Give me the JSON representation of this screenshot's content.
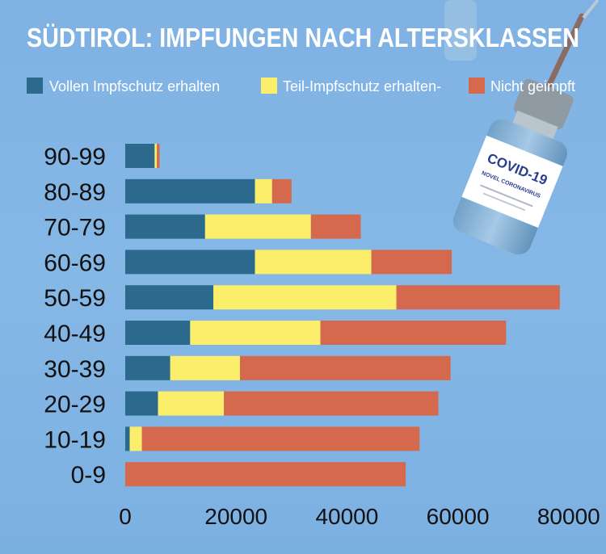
{
  "chart_data": {
    "type": "bar",
    "orientation": "horizontal",
    "stacked": true,
    "title": "SÜDTIROL: IMPFUNGEN NACH ALTERSKLASSEN",
    "categories": [
      "90-99",
      "80-89",
      "70-79",
      "60-69",
      "50-59",
      "40-49",
      "30-39",
      "20-29",
      "10-19",
      "0-9"
    ],
    "series": [
      {
        "name": "Vollen Impfschutz erhalten",
        "color": "#2b6a8c",
        "values": [
          5300,
          23400,
          14400,
          23400,
          15900,
          11700,
          8100,
          5900,
          800,
          0
        ]
      },
      {
        "name": "Teil-Impfschutz erhalten-",
        "color": "#fbee6a",
        "values": [
          400,
          3100,
          19100,
          21000,
          33000,
          23500,
          12600,
          11900,
          2200,
          0
        ]
      },
      {
        "name": "Nicht geimpft",
        "color": "#d5694e",
        "values": [
          500,
          3500,
          9000,
          14500,
          29500,
          33500,
          38000,
          38700,
          50100,
          50600
        ]
      }
    ],
    "x_ticks": [
      "0",
      "20000",
      "40000",
      "60000",
      "80000"
    ],
    "xlim": [
      0,
      80000
    ],
    "grid": false,
    "legend_position": "top"
  },
  "decoration": {
    "vial_label": "COVID-19",
    "vial_sublabel": "NOVEL CORONAVIRUS"
  }
}
